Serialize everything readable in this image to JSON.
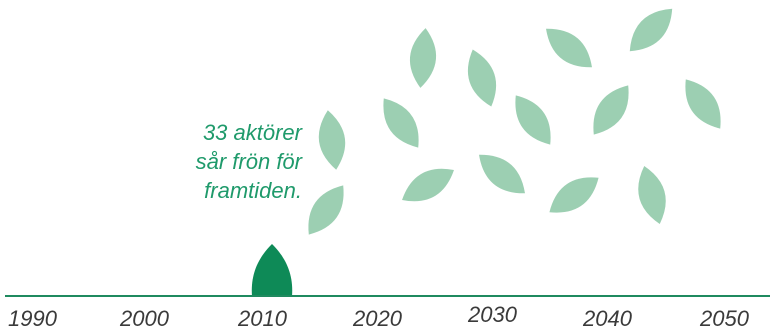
{
  "caption": {
    "lines": [
      "33 aktörer",
      "sår frön för",
      "framtiden."
    ]
  },
  "timeline": {
    "years": [
      "1990",
      "2000",
      "2010",
      "2020",
      "2030",
      "2040",
      "2050"
    ]
  },
  "colors": {
    "caption": "#1f9a6b",
    "sprout": "#0e8a57",
    "leaf": "#9ccfb2",
    "axis": "#1f8a5f",
    "year": "#3a3a3a"
  },
  "icons": {
    "sprout": "sprout-icon",
    "leaf": "leaf-icon"
  }
}
